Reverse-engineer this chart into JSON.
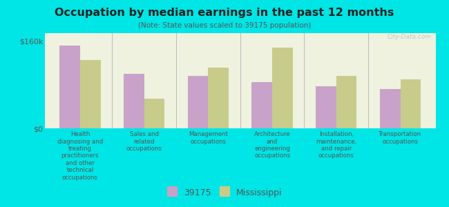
{
  "title": "Occupation by median earnings in the past 12 months",
  "subtitle": "(Note: State values scaled to 39175 population)",
  "background_color": "#00e5e5",
  "plot_bg_color": "#eef2df",
  "categories": [
    "Health\ndiagnosing and\ntreating\npractitioners\nand other\ntechnical\noccupations",
    "Sales and\nrelated\noccupations",
    "Management\noccupations",
    "Architecture\nand\nengineering\noccupations",
    "Installation,\nmaintenance,\nand repair\noccupations",
    "Transportation\noccupations"
  ],
  "values_39175": [
    152000,
    100000,
    97000,
    85000,
    77000,
    72000
  ],
  "values_mississippi": [
    125000,
    55000,
    112000,
    148000,
    97000,
    90000
  ],
  "color_39175": "#c8a2c8",
  "color_mississippi": "#c8cc8a",
  "ylim": [
    0,
    175000
  ],
  "ytick_positions": [
    0,
    160000
  ],
  "ytick_labels": [
    "$0",
    "$160k"
  ],
  "legend_39175": "39175",
  "legend_mississippi": "Mississippi",
  "watermark": "City-Data.com"
}
